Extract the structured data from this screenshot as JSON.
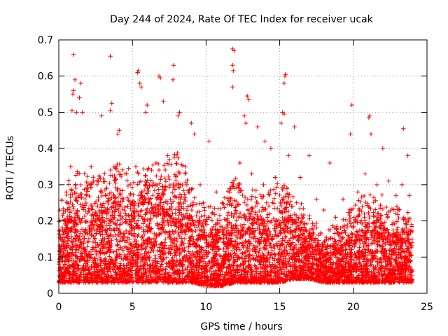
{
  "chart_data": {
    "type": "scatter",
    "title": "Day 244 of 2024, Rate Of TEC Index for receiver ucak",
    "xlabel": "GPS time / hours",
    "ylabel": "ROTI / TECUs",
    "xlim": [
      0,
      25
    ],
    "ylim": [
      0,
      0.7
    ],
    "xticks": [
      0,
      5,
      10,
      15,
      20,
      25
    ],
    "yticks": [
      0,
      0.1,
      0.2,
      0.3,
      0.4,
      0.5,
      0.6,
      0.7
    ],
    "grid": true,
    "marker": "+",
    "color": "#ff0000",
    "series": [
      {
        "name": "ROTI",
        "points": [
          [
            1.0,
            0.66
          ],
          [
            3.5,
            0.655
          ],
          [
            11.8,
            0.675
          ],
          [
            11.9,
            0.67
          ],
          [
            11.8,
            0.63
          ],
          [
            11.85,
            0.615
          ],
          [
            11.8,
            0.57
          ],
          [
            5.4,
            0.615
          ],
          [
            5.35,
            0.61
          ],
          [
            6.8,
            0.6
          ],
          [
            6.9,
            0.595
          ],
          [
            7.8,
            0.63
          ],
          [
            7.75,
            0.59
          ],
          [
            15.4,
            0.605
          ],
          [
            15.35,
            0.6
          ],
          [
            15.3,
            0.58
          ],
          [
            1.1,
            0.59
          ],
          [
            1.0,
            0.56
          ],
          [
            0.95,
            0.55
          ],
          [
            1.5,
            0.58
          ],
          [
            1.4,
            0.54
          ],
          [
            5.5,
            0.58
          ],
          [
            5.6,
            0.57
          ],
          [
            12.8,
            0.545
          ],
          [
            12.9,
            0.535
          ],
          [
            19.9,
            0.52
          ],
          [
            21.1,
            0.49
          ],
          [
            21.05,
            0.485
          ],
          [
            15.2,
            0.5
          ],
          [
            15.3,
            0.495
          ],
          [
            15.1,
            0.47
          ],
          [
            23.4,
            0.455
          ],
          [
            3.6,
            0.525
          ],
          [
            3.5,
            0.505
          ],
          [
            2.9,
            0.49
          ],
          [
            1.2,
            0.5
          ],
          [
            0.9,
            0.505
          ],
          [
            1.6,
            0.5
          ],
          [
            6.0,
            0.52
          ],
          [
            5.9,
            0.5
          ],
          [
            7.1,
            0.53
          ],
          [
            8.2,
            0.5
          ],
          [
            8.1,
            0.49
          ],
          [
            12.6,
            0.49
          ],
          [
            12.7,
            0.47
          ],
          [
            13.5,
            0.46
          ],
          [
            16.0,
            0.46
          ],
          [
            19.8,
            0.44
          ],
          [
            21.2,
            0.44
          ],
          [
            22.0,
            0.4
          ],
          [
            4.1,
            0.45
          ],
          [
            4.0,
            0.44
          ],
          [
            9.0,
            0.47
          ],
          [
            9.2,
            0.44
          ],
          [
            10.2,
            0.42
          ],
          [
            14.0,
            0.42
          ],
          [
            14.4,
            0.4
          ],
          [
            17.0,
            0.38
          ],
          [
            18.4,
            0.36
          ],
          [
            23.7,
            0.38
          ],
          [
            0.3,
            0.22
          ],
          [
            0.5,
            0.28
          ],
          [
            0.8,
            0.35
          ],
          [
            2.2,
            0.35
          ],
          [
            2.6,
            0.3
          ],
          [
            4.5,
            0.33
          ],
          [
            6.3,
            0.34
          ],
          [
            6.6,
            0.36
          ],
          [
            7.4,
            0.38
          ],
          [
            8.6,
            0.35
          ],
          [
            9.6,
            0.3
          ],
          [
            10.7,
            0.28
          ],
          [
            11.1,
            0.25
          ],
          [
            12.3,
            0.36
          ],
          [
            13.1,
            0.33
          ],
          [
            13.9,
            0.3
          ],
          [
            14.7,
            0.32
          ],
          [
            15.6,
            0.38
          ],
          [
            16.4,
            0.32
          ],
          [
            17.5,
            0.26
          ],
          [
            18.0,
            0.23
          ],
          [
            18.8,
            0.21
          ],
          [
            19.3,
            0.26
          ],
          [
            20.3,
            0.28
          ],
          [
            20.8,
            0.33
          ],
          [
            21.6,
            0.3
          ],
          [
            22.4,
            0.31
          ],
          [
            22.9,
            0.27
          ],
          [
            23.3,
            0.3
          ],
          [
            23.8,
            0.27
          ]
        ]
      }
    ],
    "density_envelope": {
      "hours": [
        0,
        1,
        2,
        3,
        4,
        5,
        6,
        7,
        8,
        9,
        10,
        11,
        12,
        13,
        14,
        15,
        16,
        17,
        18,
        19,
        20,
        21,
        22,
        23,
        24
      ],
      "typical_max": [
        0.22,
        0.32,
        0.3,
        0.3,
        0.33,
        0.32,
        0.32,
        0.33,
        0.36,
        0.27,
        0.22,
        0.22,
        0.3,
        0.27,
        0.25,
        0.29,
        0.25,
        0.2,
        0.16,
        0.18,
        0.22,
        0.26,
        0.25,
        0.22,
        0.2
      ],
      "typical_min": [
        0.03,
        0.03,
        0.03,
        0.03,
        0.03,
        0.03,
        0.03,
        0.03,
        0.03,
        0.03,
        0.02,
        0.02,
        0.03,
        0.03,
        0.03,
        0.03,
        0.04,
        0.04,
        0.03,
        0.03,
        0.03,
        0.03,
        0.03,
        0.03,
        0.03
      ]
    }
  }
}
